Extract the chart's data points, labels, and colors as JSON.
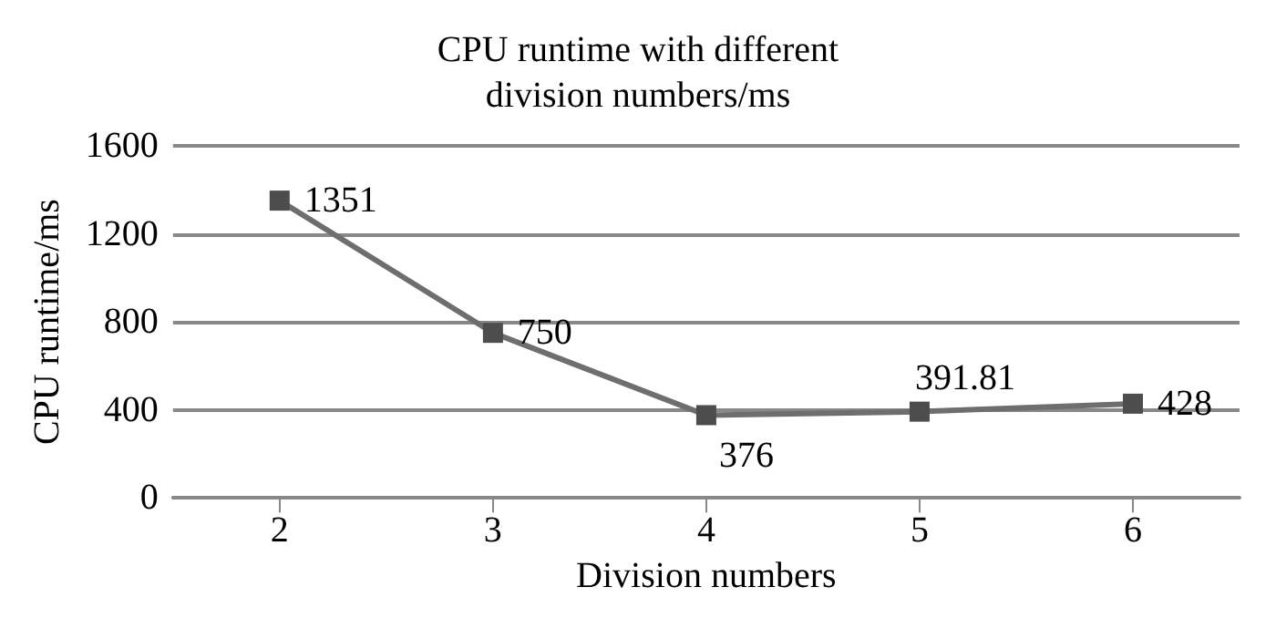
{
  "chart_data": {
    "type": "line",
    "title": "CPU runtime with different\ndivision numbers/ms",
    "xlabel": "Division numbers",
    "ylabel": "CPU runtime/ms",
    "categories": [
      "2",
      "3",
      "4",
      "5",
      "6"
    ],
    "series": [
      {
        "color": "#6e6e6e",
        "values": [
          1351,
          750,
          376,
          391.81,
          428
        ]
      }
    ],
    "ylim": [
      0,
      1600
    ],
    "yticks": [
      0,
      400,
      800,
      1200,
      1600
    ],
    "grid": "y",
    "marker": "square",
    "line_style": "solid",
    "data_labels": true
  }
}
